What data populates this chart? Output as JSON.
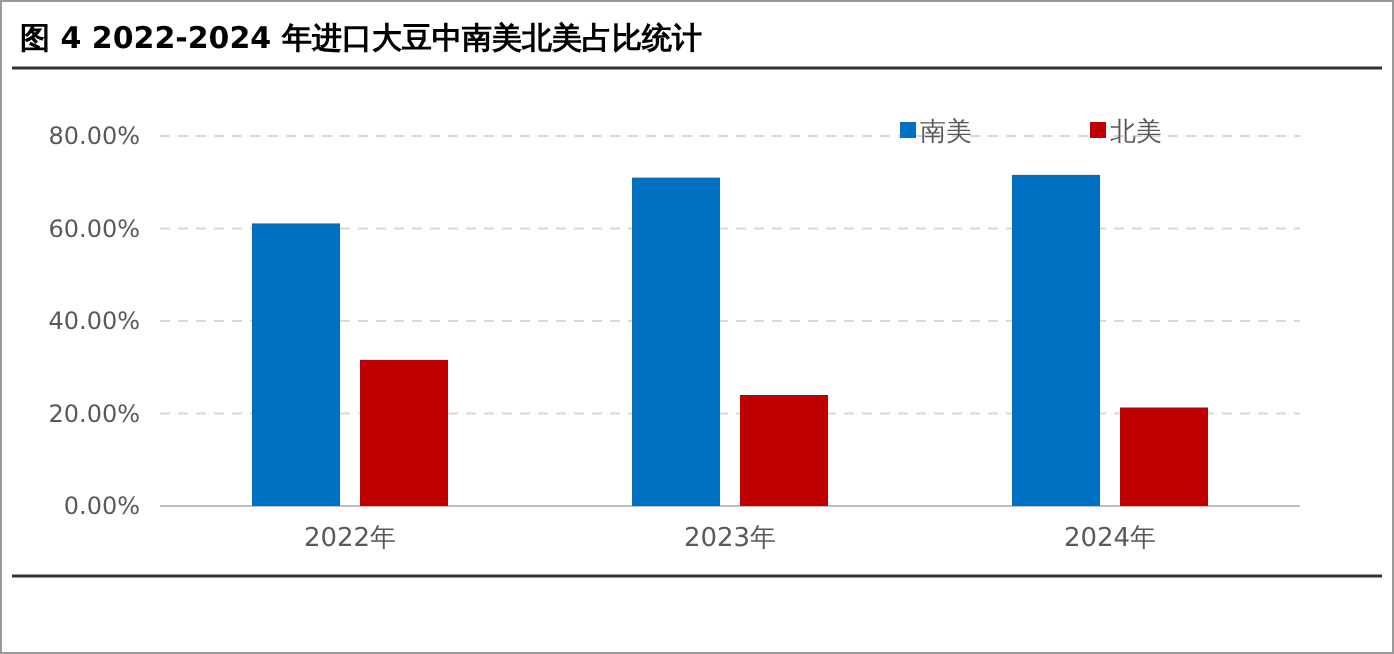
{
  "chart_data": {
    "type": "bar",
    "title": "图 4 2022-2024 年进口大豆中南美北美占比统计",
    "categories": [
      "2022年",
      "2023年",
      "2024年"
    ],
    "series": [
      {
        "name": "南美",
        "color": "#0070c0",
        "values": [
          61.1,
          71.0,
          71.6
        ]
      },
      {
        "name": "北美",
        "color": "#c00000",
        "values": [
          31.6,
          24.0,
          21.3
        ]
      }
    ],
    "ylim": [
      0,
      80
    ],
    "yticks": [
      {
        "value": 0,
        "label": "0.00%"
      },
      {
        "value": 20,
        "label": "20.00%"
      },
      {
        "value": 40,
        "label": "40.00%"
      },
      {
        "value": 60,
        "label": "60.00%"
      },
      {
        "value": 80,
        "label": "80.00%"
      }
    ],
    "grid": "y",
    "legend": "top right"
  }
}
